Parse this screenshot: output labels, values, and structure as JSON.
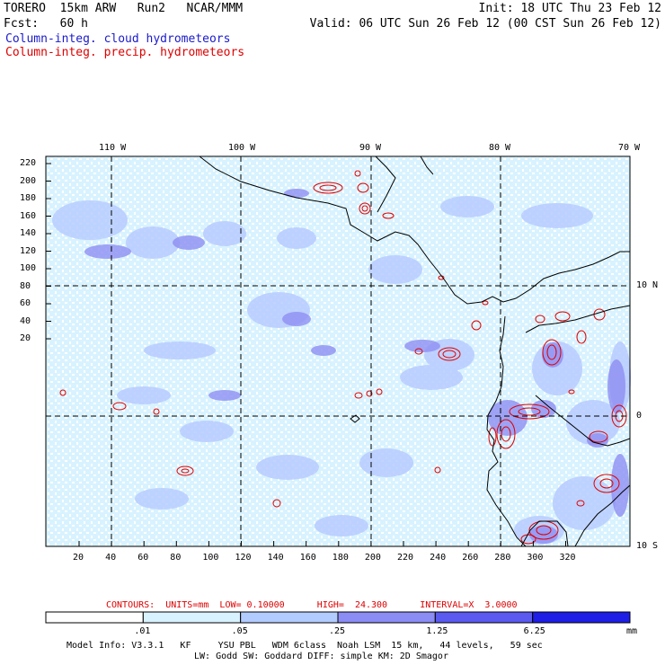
{
  "header": {
    "model": "TORERO  15km ARW   Run2   NCAR/MMM",
    "forecast": "Fcst:   60 h",
    "init": "Init: 18 UTC Thu 23 Feb 12",
    "valid": "Valid: 06 UTC Sun 26 Feb 12 (00 CST Sun 26 Feb 12)",
    "legend_cloud": "Column-integ. cloud hydrometeors",
    "legend_precip": "Column-integ. precip. hydrometeors"
  },
  "map": {
    "lon_labels": [
      "110 W",
      "100 W",
      "90 W",
      "80 W",
      "70 W"
    ],
    "lat_labels": [
      "10 N",
      "0",
      "10 S"
    ],
    "y_ticks": [
      "220",
      "200",
      "180",
      "160",
      "140",
      "120",
      "100",
      "80",
      "60",
      "40",
      "20"
    ],
    "x_ticks": [
      "20",
      "40",
      "60",
      "80",
      "100",
      "120",
      "140",
      "160",
      "180",
      "200",
      "220",
      "240",
      "260",
      "280",
      "300",
      "320"
    ]
  },
  "contour_info": {
    "label": "CONTOURS:  UNITS=mm  LOW= 0.10000      HIGH=  24.300      INTERVAL=X  3.0000"
  },
  "colorbar": {
    "levels": [
      ".01",
      ".05",
      ".25",
      "1.25",
      "6.25"
    ],
    "unit": "mm",
    "colors": [
      "#ffffff",
      "#d9f2ff",
      "#b3ccff",
      "#8c8cf5",
      "#5a5af0",
      "#1e1ee6"
    ]
  },
  "footer": {
    "line1": "Model Info: V3.3.1   KF     YSU PBL   WDM 6class  Noah LSM  15 km,   44 levels,   59 sec",
    "line2": "LW: Godd SW: Goddard DIFF: simple KM: 2D Smagor"
  }
}
